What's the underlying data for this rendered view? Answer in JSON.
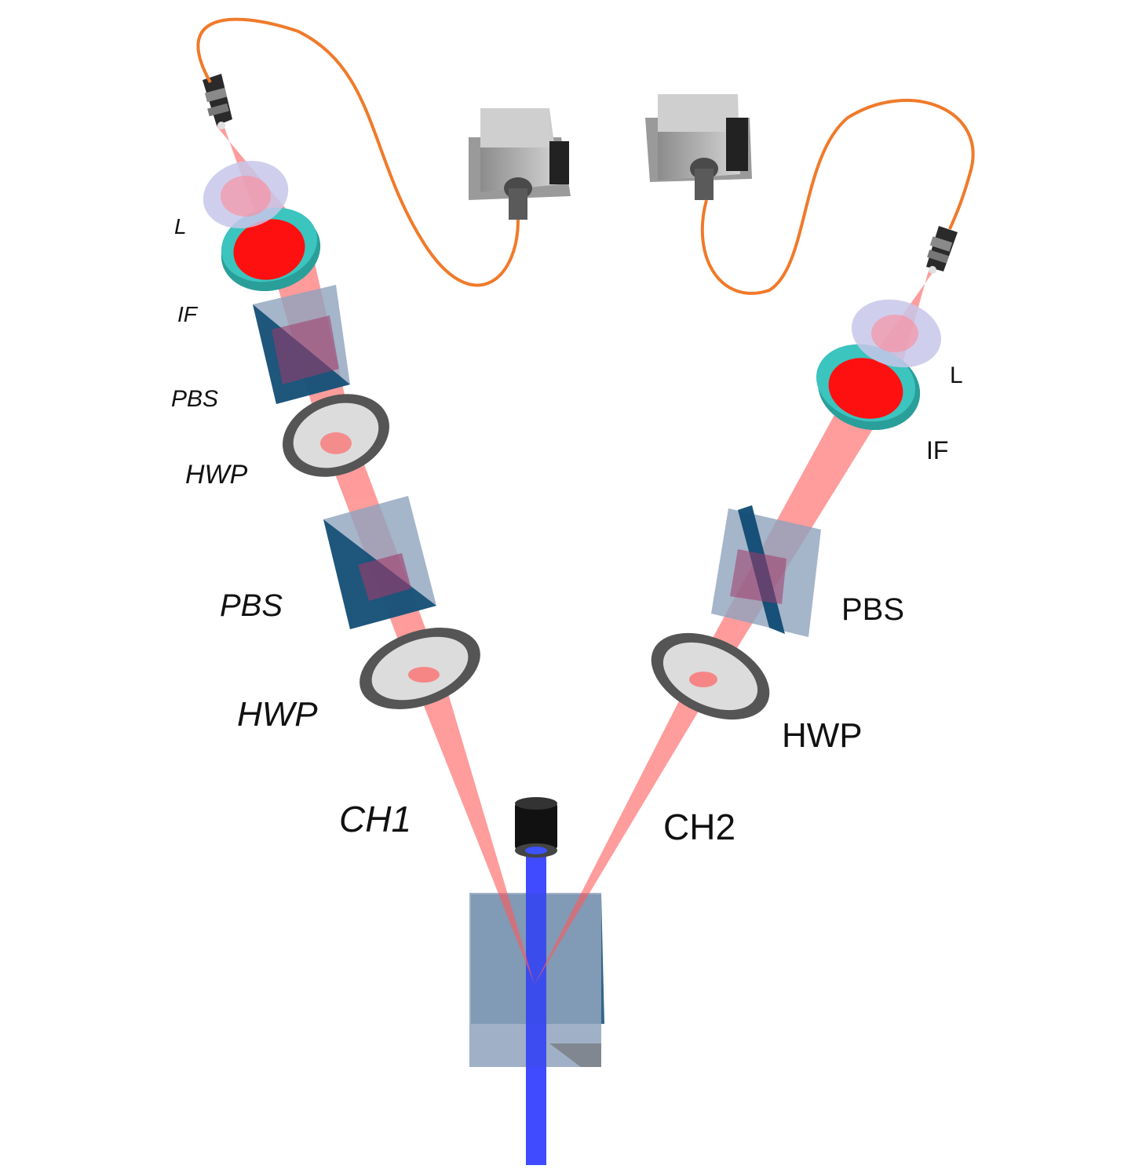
{
  "labels": {
    "ch1": "CH1",
    "ch2": "CH2",
    "left_l": "L",
    "left_if": "IF",
    "left_pbs_upper": "PBS",
    "left_hwp_upper": "HWP",
    "left_pbs_lower": "PBS",
    "left_hwp_lower": "HWP",
    "right_l": "L",
    "right_if": "IF",
    "right_pbs": "PBS",
    "right_hwp": "HWP"
  },
  "colors": {
    "pump_beam": "#1f2bff",
    "photon_beam": "#ff6a6a",
    "fiber": "#f07a2a",
    "filter_ring": "#3cc4bf",
    "filter_core": "#ff1010",
    "lens": "#c7c7ea",
    "pbs_glass": "#8fa3bd",
    "pbs_coating": "#0f4b73",
    "waveplate_ring": "#555555",
    "detector_body": "#bdbdbd"
  }
}
